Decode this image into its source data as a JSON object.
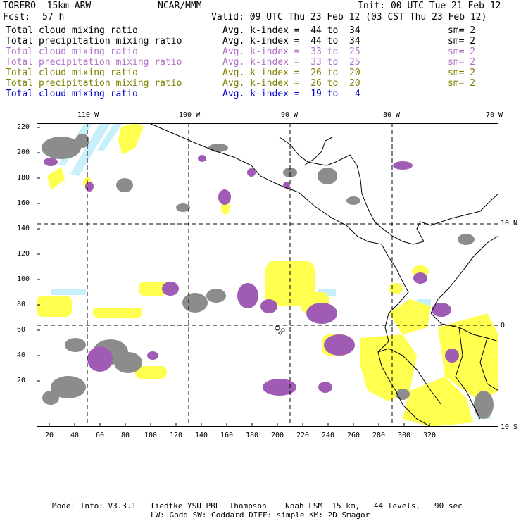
{
  "header": {
    "model": "TORERO  15km ARW",
    "center": "NCAR/MMM",
    "init": "Init: 00 UTC Tue 21 Feb 12",
    "fcst_label": "Fcst:",
    "fcst_value": "57 h",
    "valid": "Valid: 09 UTC Thu 23 Feb 12 (03 CST Thu 23 Feb 12)"
  },
  "legend": [
    {
      "label": "Total cloud mixing ratio",
      "avg": "Avg. k-index =  44 to  34",
      "sm": "sm= 2",
      "color": "#000000"
    },
    {
      "label": "Total precipitation mixing ratio",
      "avg": "Avg. k-index =  44 to  34",
      "sm": "sm= 2",
      "color": "#000000"
    },
    {
      "label": "Total cloud mixing ratio",
      "avg": "Avg. k-index =  33 to  25",
      "sm": "sm= 2",
      "color": "#b070c8"
    },
    {
      "label": "Total precipitation mixing ratio",
      "avg": "Avg. k-index =  33 to  25",
      "sm": "sm= 2",
      "color": "#b070c8"
    },
    {
      "label": "Total cloud mixing ratio",
      "avg": "Avg. k-index =  26 to  20",
      "sm": "sm= 2",
      "color": "#808000"
    },
    {
      "label": "Total precipitation mixing ratio",
      "avg": "Avg. k-index =  26 to  20",
      "sm": "sm= 2",
      "color": "#808000"
    },
    {
      "label": "Total cloud mixing ratio",
      "avg": "Avg. k-index =  19 to   4",
      "sm": "",
      "color": "#0000cc"
    }
  ],
  "axes": {
    "top_lon": [
      "110 W",
      "100 W",
      "90 W",
      "80 W",
      "70 W"
    ],
    "right_lat": [
      "10 N",
      "0",
      "10 S"
    ],
    "left_y": [
      "220",
      "200",
      "180",
      "160",
      "140",
      "120",
      "100",
      "80",
      "60",
      "40",
      "20"
    ],
    "bottom_x": [
      "20",
      "40",
      "60",
      "80",
      "100",
      "120",
      "140",
      "160",
      "180",
      "200",
      "220",
      "240",
      "260",
      "280",
      "300",
      "320"
    ]
  },
  "colors": {
    "gray": "#8c8c8c",
    "purple": "#a05cb4",
    "yellow": "#ffff50",
    "cyan": "#c8f0fa",
    "grid": "#000000"
  },
  "footer": {
    "line1": "Model Info: V3.3.1   Tiedtke YSU PBL  Thompson    Noah LSM  15 km,   44 levels,   90 sec",
    "line2": "LW: Godd SW: Goddard DIFF: simple KM: 2D Smagor"
  }
}
